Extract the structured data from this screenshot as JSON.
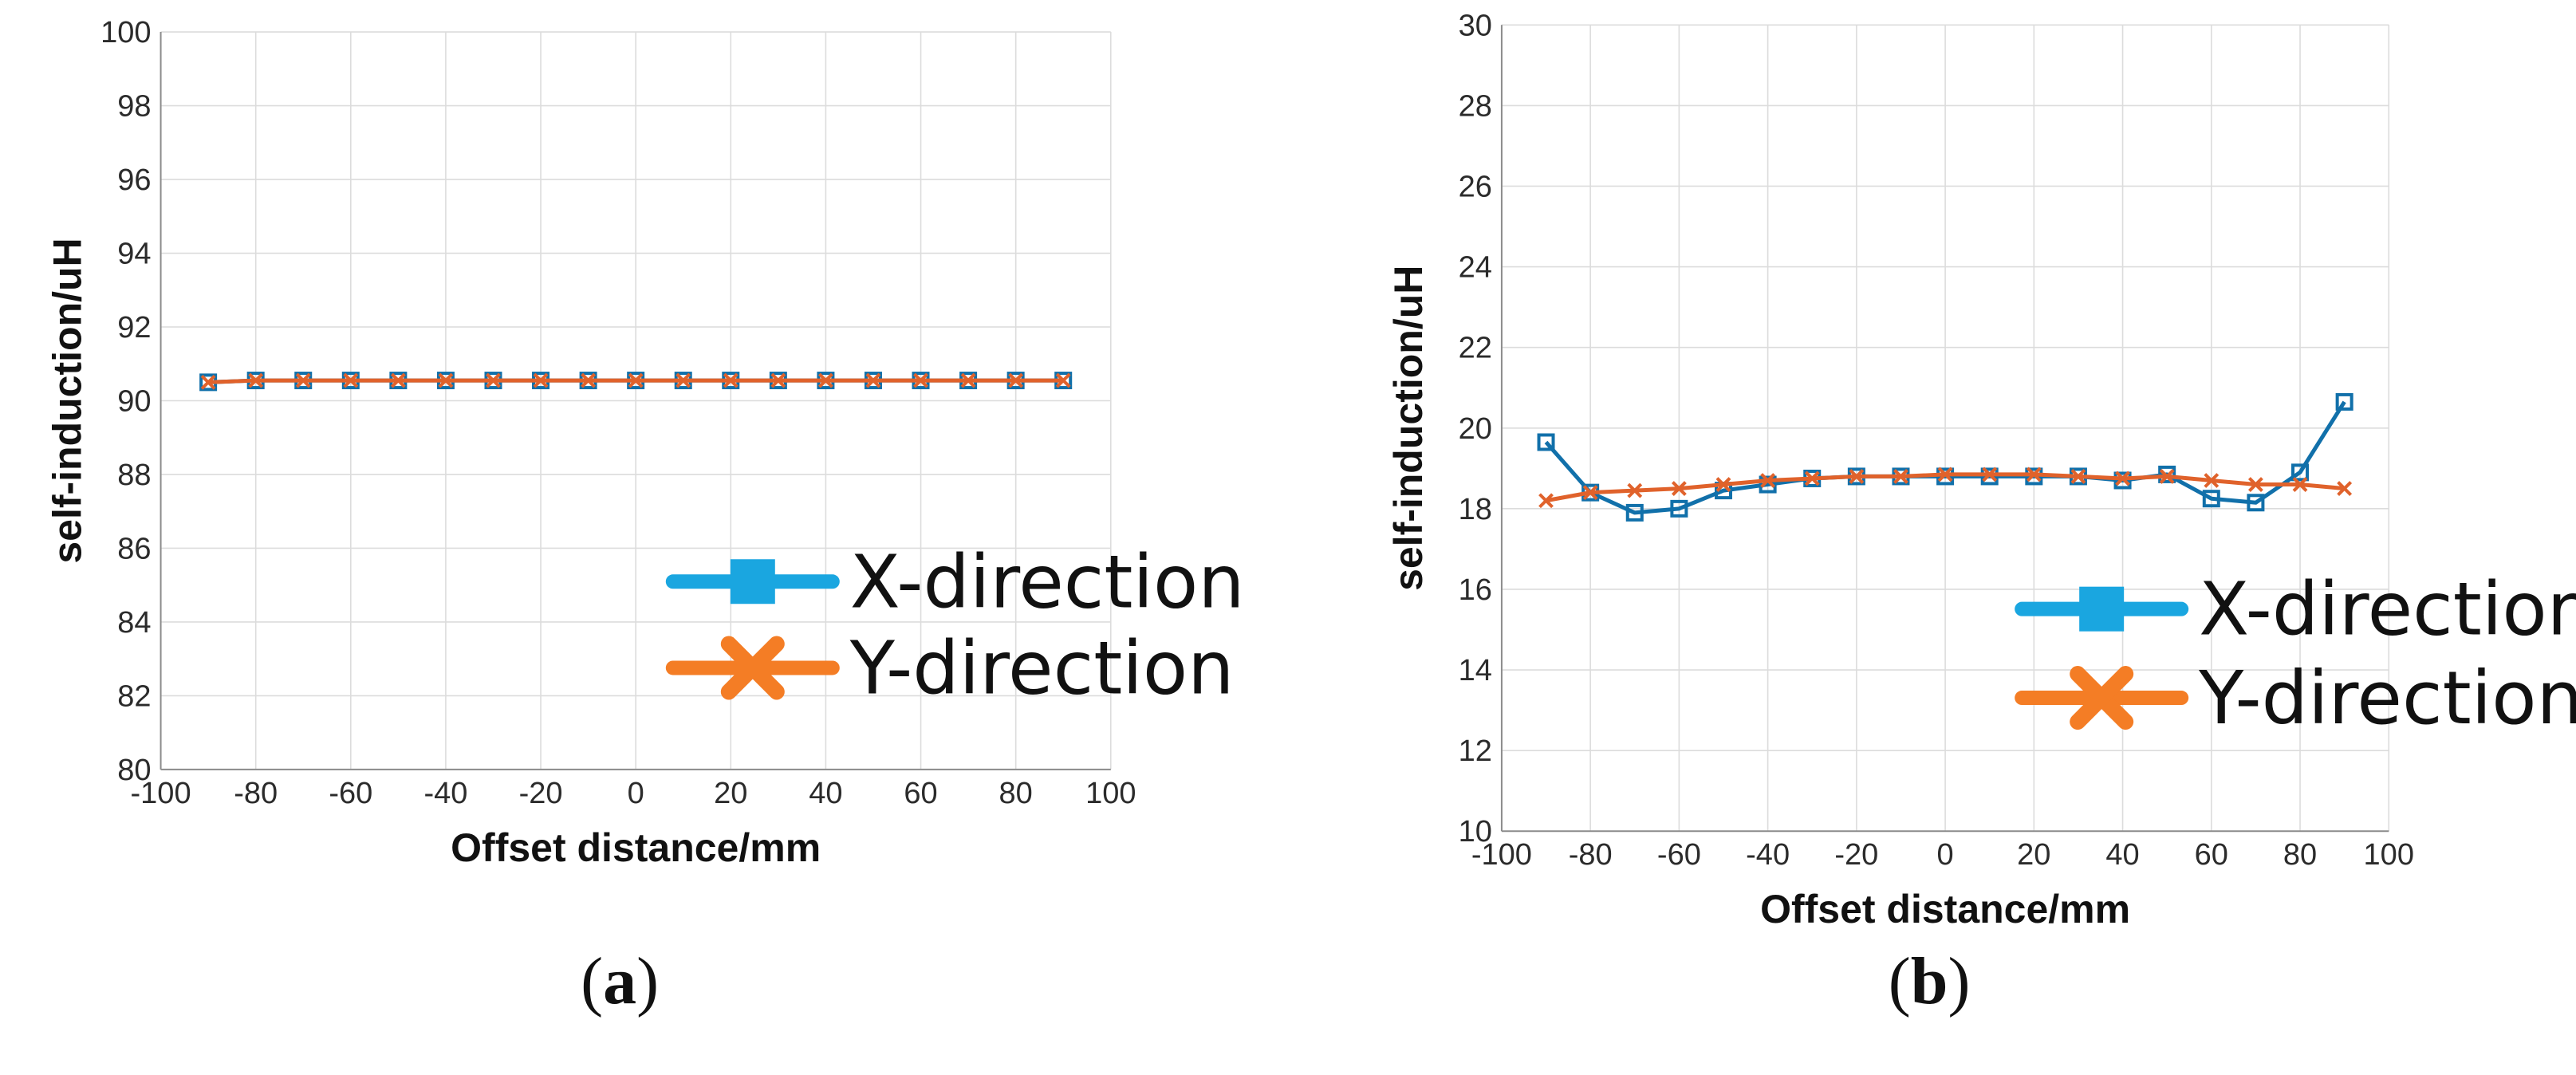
{
  "chart_data": [
    {
      "type": "line",
      "panel_label": "a",
      "xlabel": "Offset distance/mm",
      "ylabel": "self-induction/uH",
      "xlim": [
        -100,
        100
      ],
      "ylim": [
        80,
        100
      ],
      "xticks": [
        -100,
        -80,
        -60,
        -40,
        -20,
        0,
        20,
        40,
        60,
        80,
        100
      ],
      "yticks": [
        80,
        82,
        84,
        86,
        88,
        90,
        92,
        94,
        96,
        98,
        100
      ],
      "grid": true,
      "legend_position": "bottom-right",
      "x": [
        -90,
        -80,
        -70,
        -60,
        -50,
        -40,
        -30,
        -20,
        -10,
        0,
        10,
        20,
        30,
        40,
        50,
        60,
        70,
        80,
        90
      ],
      "series": [
        {
          "name": "X-direction",
          "color": "#1170aa",
          "legend_color": "#1aa6e0",
          "marker": "square",
          "values": [
            90.5,
            90.55,
            90.55,
            90.55,
            90.55,
            90.55,
            90.55,
            90.55,
            90.55,
            90.55,
            90.55,
            90.55,
            90.55,
            90.55,
            90.55,
            90.55,
            90.55,
            90.55,
            90.55
          ]
        },
        {
          "name": "Y-direction",
          "color": "#e0622b",
          "legend_color": "#f47d25",
          "marker": "x",
          "values": [
            90.5,
            90.55,
            90.55,
            90.55,
            90.55,
            90.55,
            90.55,
            90.55,
            90.55,
            90.55,
            90.55,
            90.55,
            90.55,
            90.55,
            90.55,
            90.55,
            90.55,
            90.55,
            90.55
          ]
        }
      ]
    },
    {
      "type": "line",
      "panel_label": "b",
      "xlabel": "Offset distance/mm",
      "ylabel": "self-induction/uH",
      "xlim": [
        -100,
        100
      ],
      "ylim": [
        10,
        30
      ],
      "xticks": [
        -100,
        -80,
        -60,
        -40,
        -20,
        0,
        20,
        40,
        60,
        80,
        100
      ],
      "yticks": [
        10,
        12,
        14,
        16,
        18,
        20,
        22,
        24,
        26,
        28,
        30
      ],
      "grid": true,
      "legend_position": "bottom-right",
      "x": [
        -90,
        -80,
        -70,
        -60,
        -50,
        -40,
        -30,
        -20,
        -10,
        0,
        10,
        20,
        30,
        40,
        50,
        60,
        70,
        80,
        90
      ],
      "series": [
        {
          "name": "X-direction",
          "color": "#1170aa",
          "legend_color": "#1aa6e0",
          "marker": "square",
          "values": [
            19.65,
            18.4,
            17.9,
            18.0,
            18.45,
            18.6,
            18.75,
            18.8,
            18.8,
            18.8,
            18.8,
            18.8,
            18.8,
            18.7,
            18.85,
            18.25,
            18.15,
            18.9,
            20.65
          ]
        },
        {
          "name": "Y-direction",
          "color": "#e0622b",
          "legend_color": "#f47d25",
          "marker": "x",
          "values": [
            18.2,
            18.4,
            18.45,
            18.5,
            18.6,
            18.7,
            18.75,
            18.8,
            18.8,
            18.85,
            18.85,
            18.85,
            18.8,
            18.75,
            18.8,
            18.7,
            18.6,
            18.6,
            18.5
          ]
        }
      ]
    }
  ]
}
